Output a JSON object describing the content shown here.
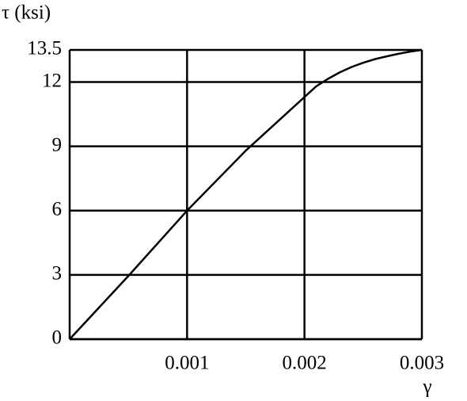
{
  "chart_data": {
    "type": "line",
    "y_label": "τ (ksi)",
    "x_label": "γ",
    "x": [
      0,
      0.0005,
      0.001,
      0.0015,
      0.002,
      0.0021,
      0.0022,
      0.0023,
      0.0024,
      0.0025,
      0.0026,
      0.0027,
      0.0028,
      0.0029,
      0.003
    ],
    "values": [
      0,
      2.95,
      6,
      8.8,
      11.3,
      11.8,
      12.15,
      12.45,
      12.7,
      12.9,
      13.07,
      13.2,
      13.32,
      13.42,
      13.5
    ],
    "color": "#000000",
    "xlim": [
      0,
      0.003
    ],
    "xticks": [
      0.001,
      0.002,
      0.003
    ],
    "ylim": [
      0,
      13.5
    ],
    "yticks": [
      0,
      3,
      6,
      9,
      12,
      13.5
    ],
    "grid": true
  }
}
